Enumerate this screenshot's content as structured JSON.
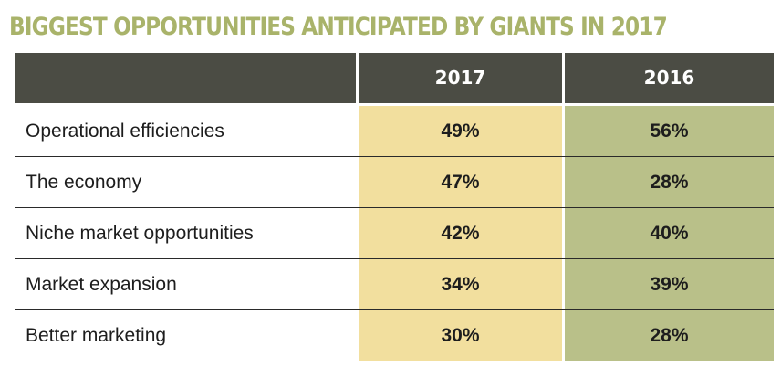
{
  "chart_data": {
    "type": "table",
    "title": "BIGGEST OPPORTUNITIES ANTICIPATED BY GIANTS IN 2017",
    "columns": [
      "",
      "2017",
      "2016"
    ],
    "rows": [
      {
        "label": "Operational efficiencies",
        "v2017": "49%",
        "v2016": "56%"
      },
      {
        "label": "The economy",
        "v2017": "47%",
        "v2016": "28%"
      },
      {
        "label": "Niche market opportunities",
        "v2017": "42%",
        "v2016": "40%"
      },
      {
        "label": "Market expansion",
        "v2017": "34%",
        "v2016": "39%"
      },
      {
        "label": "Better marketing",
        "v2017": "30%",
        "v2016": "28%"
      }
    ],
    "series": [
      {
        "name": "2017",
        "values": [
          49,
          47,
          42,
          34,
          30
        ]
      },
      {
        "name": "2016",
        "values": [
          56,
          28,
          40,
          39,
          28
        ]
      }
    ],
    "categories": [
      "Operational efficiencies",
      "The economy",
      "Niche market opportunities",
      "Market expansion",
      "Better marketing"
    ]
  },
  "colors": {
    "title": "#a9b36a",
    "header_bg": "#4b4c44",
    "col_2017_bg": "#f2df9e",
    "col_2016_bg": "#b9c089"
  }
}
